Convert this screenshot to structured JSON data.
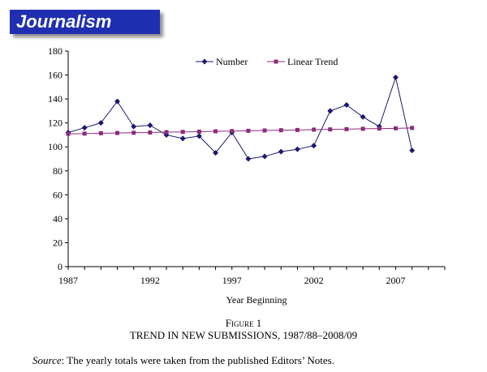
{
  "header": {
    "title": "Journalism"
  },
  "figure": {
    "label": "Figure 1",
    "title": "TREND IN NEW SUBMISSIONS, 1987/88–2008/09",
    "source_label": "Source",
    "source_text": ": The yearly totals were taken from the published Editors’ Notes."
  },
  "chart_data": {
    "type": "line",
    "xlabel": "Year Beginning",
    "ylabel": "",
    "x": [
      1987,
      1988,
      1989,
      1990,
      1991,
      1992,
      1993,
      1994,
      1995,
      1996,
      1997,
      1998,
      1999,
      2000,
      2001,
      2002,
      2003,
      2004,
      2005,
      2006,
      2007,
      2008
    ],
    "xlim": [
      1987,
      2010
    ],
    "ylim": [
      0,
      180
    ],
    "x_ticks": [
      1987,
      1992,
      1997,
      2002,
      2007
    ],
    "y_ticks": [
      0,
      20,
      40,
      60,
      80,
      100,
      120,
      140,
      160,
      180
    ],
    "grid": false,
    "legend_position": "top-right",
    "series": [
      {
        "name": "Number",
        "color": "#1a1a6e",
        "marker": "diamond",
        "values": [
          112,
          116,
          120,
          138,
          117,
          118,
          110,
          107,
          109,
          95,
          112,
          90,
          92,
          96,
          98,
          101,
          130,
          135,
          125,
          117,
          158,
          97
        ]
      },
      {
        "name": "Linear Trend",
        "color": "#8b2c7a",
        "marker": "square",
        "values": [
          110.9,
          111.1,
          111.4,
          111.6,
          111.8,
          112.0,
          112.3,
          112.5,
          112.7,
          113.0,
          113.2,
          113.4,
          113.7,
          113.9,
          114.1,
          114.4,
          114.6,
          114.8,
          115.1,
          115.3,
          115.5,
          115.8
        ]
      }
    ]
  }
}
